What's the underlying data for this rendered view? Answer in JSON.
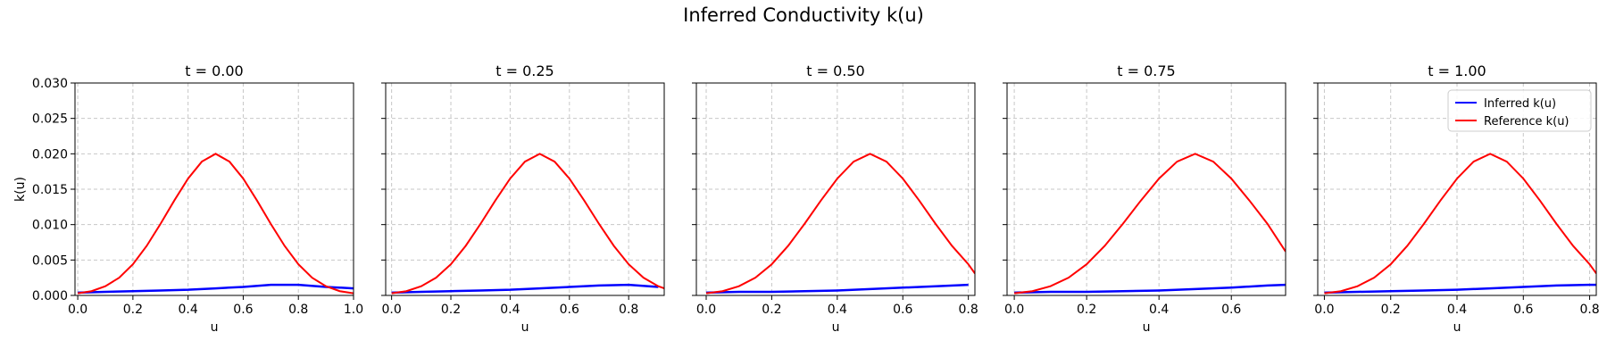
{
  "figure_title": "Inferred Conductivity k(u)",
  "colors": {
    "inferred": "#0000ff",
    "reference": "#ff0000"
  },
  "legend_placement": "upper-right of last panel",
  "chart_data": [
    {
      "type": "line",
      "title": "t = 0.00",
      "xlabel": "u",
      "ylabel": "k(u)",
      "xlim": [
        -0.01,
        1.0
      ],
      "ylim": [
        0,
        0.03
      ],
      "xticks": [
        "0.0",
        "0.2",
        "0.4",
        "0.6",
        "0.8",
        "1.0"
      ],
      "yticks": [
        "0.000",
        "0.005",
        "0.010",
        "0.015",
        "0.020",
        "0.025",
        "0.030"
      ],
      "grid": true,
      "series": [
        {
          "name": "Inferred k(u)",
          "x": [
            0.0,
            0.1,
            0.2,
            0.3,
            0.4,
            0.5,
            0.6,
            0.7,
            0.8,
            0.9,
            1.0
          ],
          "y": [
            0.0004,
            0.0005,
            0.0006,
            0.0007,
            0.0008,
            0.001,
            0.0012,
            0.0015,
            0.0015,
            0.0012,
            0.001
          ]
        },
        {
          "name": "Reference k(u)",
          "x": [
            0.0,
            0.05,
            0.1,
            0.15,
            0.2,
            0.25,
            0.3,
            0.35,
            0.4,
            0.45,
            0.5,
            0.55,
            0.6,
            0.65,
            0.7,
            0.75,
            0.8,
            0.85,
            0.9,
            0.95,
            1.0
          ],
          "y": [
            0.0003,
            0.0006,
            0.0013,
            0.0025,
            0.0044,
            0.007,
            0.0101,
            0.0134,
            0.0165,
            0.0189,
            0.02,
            0.0189,
            0.0165,
            0.0134,
            0.0101,
            0.007,
            0.0044,
            0.0025,
            0.0013,
            0.0006,
            0.0003
          ]
        }
      ]
    },
    {
      "type": "line",
      "title": "t = 0.25",
      "xlabel": "u",
      "ylabel": "",
      "xlim": [
        -0.02,
        0.92
      ],
      "ylim": [
        0,
        0.03
      ],
      "xticks": [
        "0.0",
        "0.2",
        "0.4",
        "0.6",
        "0.8"
      ],
      "grid": true,
      "series": [
        {
          "name": "Inferred k(u)",
          "x": [
            0.0,
            0.1,
            0.2,
            0.3,
            0.4,
            0.5,
            0.6,
            0.7,
            0.8,
            0.9
          ],
          "y": [
            0.0004,
            0.0005,
            0.0006,
            0.0007,
            0.0008,
            0.001,
            0.0012,
            0.0014,
            0.0015,
            0.0012
          ]
        },
        {
          "name": "Reference k(u)",
          "x": [
            0.0,
            0.05,
            0.1,
            0.15,
            0.2,
            0.25,
            0.3,
            0.35,
            0.4,
            0.45,
            0.5,
            0.55,
            0.6,
            0.65,
            0.7,
            0.75,
            0.8,
            0.85,
            0.9,
            0.92
          ],
          "y": [
            0.0003,
            0.0006,
            0.0013,
            0.0025,
            0.0044,
            0.007,
            0.0101,
            0.0134,
            0.0165,
            0.0189,
            0.02,
            0.0189,
            0.0165,
            0.0134,
            0.0101,
            0.007,
            0.0044,
            0.0025,
            0.0013,
            0.001
          ]
        }
      ]
    },
    {
      "type": "line",
      "title": "t = 0.50",
      "xlabel": "u",
      "ylabel": "",
      "xlim": [
        -0.03,
        0.82
      ],
      "ylim": [
        0,
        0.03
      ],
      "xticks": [
        "0.0",
        "0.2",
        "0.4",
        "0.6",
        "0.8"
      ],
      "grid": true,
      "series": [
        {
          "name": "Inferred k(u)",
          "x": [
            0.0,
            0.1,
            0.2,
            0.3,
            0.4,
            0.5,
            0.6,
            0.7,
            0.8
          ],
          "y": [
            0.0004,
            0.0005,
            0.0005,
            0.0006,
            0.0007,
            0.0009,
            0.0011,
            0.0013,
            0.0015
          ]
        },
        {
          "name": "Reference k(u)",
          "x": [
            0.0,
            0.05,
            0.1,
            0.15,
            0.2,
            0.25,
            0.3,
            0.35,
            0.4,
            0.45,
            0.5,
            0.55,
            0.6,
            0.65,
            0.7,
            0.75,
            0.8,
            0.82
          ],
          "y": [
            0.0003,
            0.0006,
            0.0013,
            0.0025,
            0.0044,
            0.007,
            0.0101,
            0.0134,
            0.0165,
            0.0189,
            0.02,
            0.0189,
            0.0165,
            0.0134,
            0.0101,
            0.007,
            0.0044,
            0.0031
          ]
        }
      ]
    },
    {
      "type": "line",
      "title": "t = 0.75",
      "xlabel": "u",
      "ylabel": "",
      "xlim": [
        -0.02,
        0.75
      ],
      "ylim": [
        0,
        0.03
      ],
      "xticks": [
        "0.0",
        "0.2",
        "0.4",
        "0.6"
      ],
      "grid": true,
      "series": [
        {
          "name": "Inferred k(u)",
          "x": [
            0.0,
            0.1,
            0.2,
            0.3,
            0.4,
            0.5,
            0.6,
            0.7,
            0.75
          ],
          "y": [
            0.0004,
            0.0005,
            0.0005,
            0.0006,
            0.0007,
            0.0009,
            0.0011,
            0.0014,
            0.0015
          ]
        },
        {
          "name": "Reference k(u)",
          "x": [
            0.0,
            0.05,
            0.1,
            0.15,
            0.2,
            0.25,
            0.3,
            0.35,
            0.4,
            0.45,
            0.5,
            0.55,
            0.6,
            0.65,
            0.7,
            0.75
          ],
          "y": [
            0.0003,
            0.0006,
            0.0013,
            0.0025,
            0.0044,
            0.007,
            0.0101,
            0.0134,
            0.0165,
            0.0189,
            0.02,
            0.0189,
            0.0165,
            0.0134,
            0.0101,
            0.0062
          ]
        }
      ]
    },
    {
      "type": "line",
      "title": "t = 1.00",
      "xlabel": "u",
      "ylabel": "",
      "xlim": [
        -0.02,
        0.82
      ],
      "ylim": [
        0,
        0.03
      ],
      "xticks": [
        "0.0",
        "0.2",
        "0.4",
        "0.6",
        "0.8"
      ],
      "grid": true,
      "legend": [
        "Inferred k(u)",
        "Reference k(u)"
      ],
      "series": [
        {
          "name": "Inferred k(u)",
          "x": [
            0.0,
            0.1,
            0.2,
            0.3,
            0.4,
            0.5,
            0.6,
            0.7,
            0.8,
            0.82
          ],
          "y": [
            0.0004,
            0.0005,
            0.0006,
            0.0007,
            0.0008,
            0.001,
            0.0012,
            0.0014,
            0.0015,
            0.0015
          ]
        },
        {
          "name": "Reference k(u)",
          "x": [
            0.0,
            0.05,
            0.1,
            0.15,
            0.2,
            0.25,
            0.3,
            0.35,
            0.4,
            0.45,
            0.5,
            0.55,
            0.6,
            0.65,
            0.7,
            0.75,
            0.8,
            0.82
          ],
          "y": [
            0.0003,
            0.0006,
            0.0013,
            0.0025,
            0.0044,
            0.007,
            0.0101,
            0.0134,
            0.0165,
            0.0189,
            0.02,
            0.0189,
            0.0165,
            0.0134,
            0.0101,
            0.007,
            0.0044,
            0.0031
          ]
        }
      ]
    }
  ]
}
